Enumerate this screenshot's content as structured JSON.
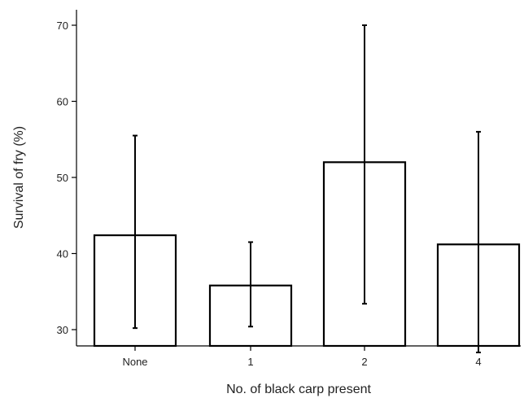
{
  "chart_data": {
    "type": "bar",
    "title": "",
    "xlabel": "No. of black carp present",
    "ylabel": "Survival of fry (%)",
    "categories": [
      "None",
      "1",
      "2",
      "4"
    ],
    "values": [
      42.4,
      35.8,
      52.0,
      41.2
    ],
    "error_low": [
      30.2,
      30.4,
      33.4,
      27.0
    ],
    "error_high": [
      55.5,
      41.5,
      70.0,
      56.0
    ],
    "ylim": [
      28,
      72
    ],
    "yticks": [
      30,
      40,
      50,
      60,
      70
    ],
    "grid": false,
    "legend": "none"
  }
}
